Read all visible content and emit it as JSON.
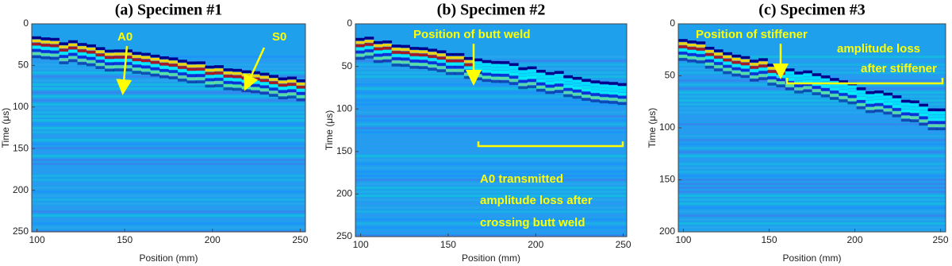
{
  "chart_data": [
    {
      "type": "heatmap",
      "title": "(a) Specimen #1",
      "xlabel": "Position (mm)",
      "ylabel": "Time (μs)",
      "xlim": [
        97,
        253
      ],
      "ylim": [
        0,
        250
      ],
      "xticks": [
        100,
        150,
        200,
        250
      ],
      "yticks": [
        0,
        50,
        100,
        150,
        200,
        250
      ],
      "annotations": [
        {
          "text": [
            "A0"
          ]
        },
        {
          "text": [
            "S0"
          ]
        }
      ]
    },
    {
      "type": "heatmap",
      "title": "(b) Specimen #2",
      "xlabel": "Position (mm)",
      "ylabel": "Time (μs)",
      "xlim": [
        97,
        252
      ],
      "ylim": [
        0,
        250
      ],
      "xticks": [
        100,
        150,
        200,
        250
      ],
      "yticks": [
        0,
        50,
        100,
        150,
        200,
        250
      ],
      "annotations": [
        {
          "text": [
            "Position of butt weld"
          ]
        },
        {
          "text": [
            "A0 transmitted",
            "amplitude loss after",
            "crossing butt weld"
          ]
        }
      ]
    },
    {
      "type": "heatmap",
      "title": "(c) Specimen #3",
      "xlabel": "Position (mm)",
      "ylabel": "Time (μs)",
      "xlim": [
        97,
        253
      ],
      "ylim": [
        0,
        200
      ],
      "xticks": [
        100,
        150,
        200,
        250
      ],
      "yticks": [
        0,
        50,
        100,
        150,
        200
      ],
      "annotations": [
        {
          "text": [
            "Position of stiffener"
          ]
        },
        {
          "text": [
            "amplitude loss",
            "after stiffener"
          ]
        }
      ]
    }
  ]
}
